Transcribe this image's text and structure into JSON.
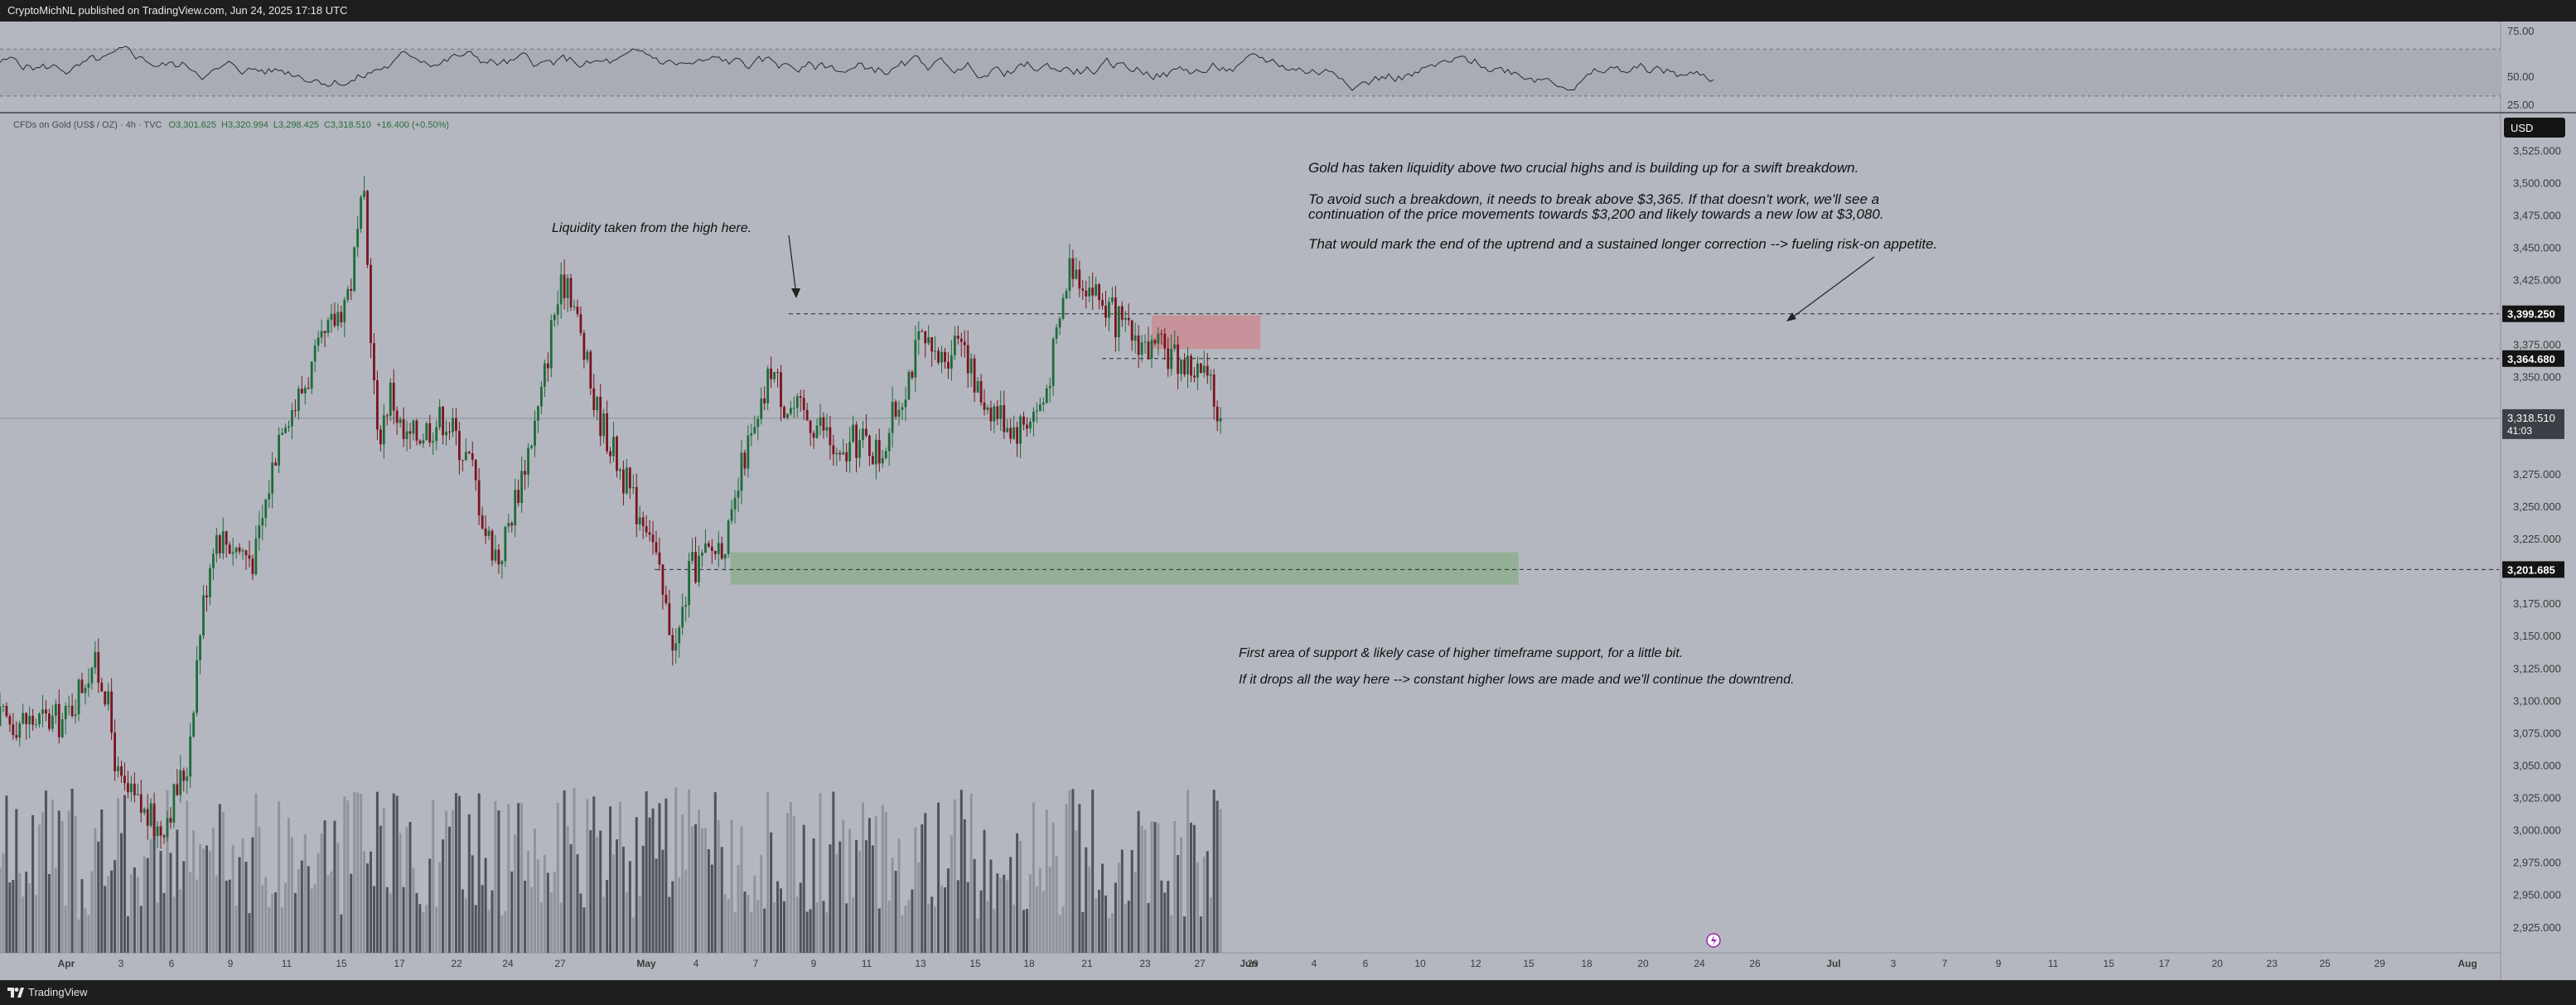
{
  "header": {
    "publisher": "CryptoMichNL published on TradingView.com, Jun 24, 2025 17:18 UTC"
  },
  "footer": {
    "brand": "TradingView"
  },
  "symbol": {
    "name": "CFDs on Gold (US$ / OZ) · 4h · TVC",
    "open": "O3,301.625",
    "high": "H3,320.994",
    "low": "L3,298.425",
    "close": "C3,318.510",
    "change": "+16.400 (+0.50%)"
  },
  "currency_badge": "USD",
  "rsi": {
    "tick_labels": [
      "75.00",
      "50.00",
      "25.00"
    ]
  },
  "price_scale": {
    "tick_labels": [
      "3,525.000",
      "3,500.000",
      "3,475.000",
      "3,450.000",
      "3,425.000",
      "3,375.000",
      "3,350.000",
      "3,275.000",
      "3,250.000",
      "3,225.000",
      "3,175.000",
      "3,150.000",
      "3,125.000",
      "3,100.000",
      "3,075.000",
      "3,050.000",
      "3,025.000",
      "3,000.000",
      "2,975.000",
      "2,950.000",
      "2,925.000"
    ],
    "marked_levels": [
      {
        "label": "3,399.250",
        "value": 3399.25
      },
      {
        "label": "3,364.680",
        "value": 3364.68
      },
      {
        "label": "3,201.685",
        "value": 3201.685
      }
    ],
    "last_price": {
      "label": "3,318.510",
      "countdown": "41:03",
      "value": 3318.51
    }
  },
  "time_axis": {
    "labels": [
      "Apr",
      "3",
      "6",
      "9",
      "11",
      "15",
      "17",
      "22",
      "24",
      "27",
      "May",
      "4",
      "7",
      "9",
      "11",
      "13",
      "15",
      "18",
      "21",
      "23",
      "27",
      "29",
      "Jun",
      "4",
      "6",
      "10",
      "12",
      "15",
      "18",
      "20",
      "24",
      "26",
      "Jul",
      "3",
      "7",
      "9",
      "11",
      "15",
      "17",
      "20",
      "23",
      "25",
      "29",
      "Aug"
    ]
  },
  "annotations": {
    "liquidity": "Liquidity taken from the high here.",
    "main_1": "Gold has taken liquidity above two crucial highs and is building up for a swift breakdown.",
    "main_2": "To avoid such a breakdown, it needs to break above $3,365. If that doesn't work, we'll see a",
    "main_3": "continuation of the price movements towards $3,200 and likely towards a new low at $3,080.",
    "main_4": "That would mark the end of the uptrend and a sustained longer correction --> fueling risk-on appetite.",
    "support_1": "First area of support & likely case of higher timeframe support, for a little bit.",
    "support_2": "If it drops all the way here --> constant higher lows are made and we'll continue the downtrend."
  },
  "colors": {
    "chart_bg": "#b4b7bf",
    "up_candle": "#1e6b3a",
    "down_candle": "#7a1420",
    "resistance_zone": "#c98e95",
    "support_zone": "#8fae92",
    "label_bg": "#141414"
  },
  "chart_data": {
    "type": "candlestick",
    "symbol": "XAUUSD",
    "interval": "4h",
    "y_range": [
      2905,
      3545
    ],
    "close_path": {
      "dates": [
        "2025-03-31",
        "2025-04-02",
        "2025-04-03",
        "2025-04-04",
        "2025-04-07",
        "2025-04-09",
        "2025-04-10",
        "2025-04-11",
        "2025-04-14",
        "2025-04-16",
        "2025-04-17",
        "2025-04-21",
        "2025-04-22",
        "2025-04-23",
        "2025-04-24",
        "2025-04-25",
        "2025-04-28",
        "2025-04-29",
        "2025-04-30",
        "2025-05-01",
        "2025-05-02",
        "2025-05-05",
        "2025-05-06",
        "2025-05-07",
        "2025-05-08",
        "2025-05-09",
        "2025-05-12",
        "2025-05-13",
        "2025-05-14",
        "2025-05-15",
        "2025-05-16",
        "2025-05-19",
        "2025-05-20",
        "2025-05-21",
        "2025-05-22",
        "2025-05-23",
        "2025-05-26",
        "2025-05-27",
        "2025-05-28",
        "2025-05-29",
        "2025-05-30",
        "2025-06-02",
        "2025-06-03",
        "2025-06-04",
        "2025-06-05",
        "2025-06-06",
        "2025-06-09",
        "2025-06-10",
        "2025-06-11",
        "2025-06-12",
        "2025-06-13",
        "2025-06-16",
        "2025-06-17",
        "2025-06-18",
        "2025-06-19",
        "2025-06-20",
        "2025-06-23",
        "2025-06-24"
      ],
      "close": [
        3085,
        3130,
        3110,
        3035,
        3000,
        3050,
        3160,
        3230,
        3210,
        3320,
        3330,
        3420,
        3490,
        3300,
        3340,
        3300,
        3320,
        3300,
        3280,
        3230,
        3210,
        3330,
        3400,
        3430,
        3380,
        3330,
        3250,
        3240,
        3180,
        3140,
        3200,
        3230,
        3290,
        3310,
        3360,
        3330,
        3310,
        3280,
        3300,
        3300,
        3290,
        3380,
        3360,
        3370,
        3390,
        3340,
        3310,
        3320,
        3330,
        3380,
        3440,
        3400,
        3385,
        3380,
        3370,
        3370,
        3350,
        3318.51
      ]
    },
    "horizontal_levels": [
      3399.25,
      3364.68,
      3201.685,
      3318.51
    ],
    "zones": [
      {
        "name": "resistance",
        "y_range": [
          3372,
          3398
        ],
        "date_range": [
          "2025-06-19",
          "2025-06-27"
        ]
      },
      {
        "name": "support",
        "y_range": [
          3190,
          3215
        ],
        "date_range": [
          "2025-05-19",
          "2025-07-16"
        ]
      }
    ],
    "rsi": {
      "y_range": [
        20,
        85
      ],
      "band": [
        30,
        70
      ]
    }
  }
}
